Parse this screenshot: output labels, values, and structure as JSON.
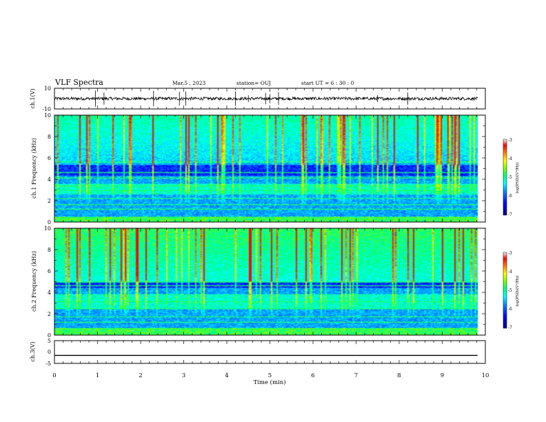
{
  "header": {
    "title": "VLF Spectra",
    "date": "Mar.5 , 2023",
    "station": "station= OUJ",
    "start": "start UT = 6 : 30 : 0"
  },
  "colors": {
    "background": "#ffffff",
    "axis": "#000000",
    "trace": "#000000",
    "colormap": [
      "#000080",
      "#0000ff",
      "#0080ff",
      "#00ffff",
      "#00ff80",
      "#80ff00",
      "#ffff00",
      "#ff8000",
      "#ff0000",
      "#ffffff"
    ]
  },
  "chart_data": [
    {
      "type": "line",
      "name": "ch1-waveform",
      "ylabel": "ch.1(V)",
      "ylim": [
        -10,
        10
      ],
      "yticks": [
        "10",
        "-10"
      ],
      "xlim": [
        0,
        10
      ],
      "series": [
        {
          "name": "ch.1",
          "baseline": 0,
          "noise_amplitude": 1.5,
          "spike_times": [
            0.95,
            1.15,
            2.3,
            2.9,
            3.05,
            4.2,
            4.5,
            4.9,
            5.0,
            5.2,
            7.5,
            8.2
          ]
        }
      ]
    },
    {
      "type": "heatmap",
      "name": "ch1-spectrogram",
      "ylabel": "ch.1 Frequency (kHz)",
      "xlim": [
        0,
        9.82
      ],
      "ylim": [
        0,
        10
      ],
      "yticks": [
        "0",
        "2",
        "4",
        "6",
        "8",
        "10"
      ],
      "colorbar": {
        "label": "log(PSD)(V²/Hz)",
        "range": [
          -7,
          -3
        ],
        "ticks": [
          "-3",
          "-4",
          "-5",
          "-6",
          "-7"
        ]
      },
      "features": {
        "sferic_band_kHz": [
          5.5,
          10
        ],
        "dark_band_kHz": [
          4.3,
          5.3
        ],
        "chorus_band_kHz": [
          2.6,
          3.6
        ],
        "low_band_kHz": [
          0,
          0.5
        ],
        "lines_kHz": [
          0.3,
          1.2,
          1.6,
          2.2,
          2.9,
          3.4,
          4.1,
          4.6,
          5.6
        ]
      }
    },
    {
      "type": "heatmap",
      "name": "ch2-spectrogram",
      "ylabel": "ch.2 Frequency (kHz)",
      "xlim": [
        0,
        9.82
      ],
      "ylim": [
        0,
        10
      ],
      "yticks": [
        "0",
        "2",
        "4",
        "6",
        "8",
        "10"
      ],
      "colorbar": {
        "label": "log(PSD)(V²/Hz)",
        "range": [
          -7,
          -3
        ],
        "ticks": [
          "-3",
          "-4",
          "-5",
          "-6",
          "-7"
        ]
      },
      "features": {
        "sferic_band_kHz": [
          5.0,
          10
        ],
        "dark_band_kHz": [
          4.4,
          5.0
        ],
        "chorus_band_kHz": [
          2.4,
          3.8
        ],
        "low_band_kHz": [
          0,
          0.6
        ],
        "lines_kHz": [
          0.6,
          1.2,
          1.7,
          2.4,
          3.1,
          4.6,
          5.0
        ]
      }
    },
    {
      "type": "line",
      "name": "ch3-waveform",
      "ylabel": "ch.3(V)",
      "ylim": [
        -5,
        5
      ],
      "yticks": [
        "5",
        "0",
        "-5"
      ],
      "xlim": [
        0,
        10
      ],
      "series": [
        {
          "name": "ch.3",
          "baseline": -1.5,
          "noise_amplitude": 0
        }
      ]
    }
  ],
  "xaxis": {
    "label": "Time (min)",
    "ticks": [
      "0",
      "1",
      "2",
      "3",
      "4",
      "5",
      "6",
      "7",
      "8",
      "9",
      "10"
    ]
  }
}
